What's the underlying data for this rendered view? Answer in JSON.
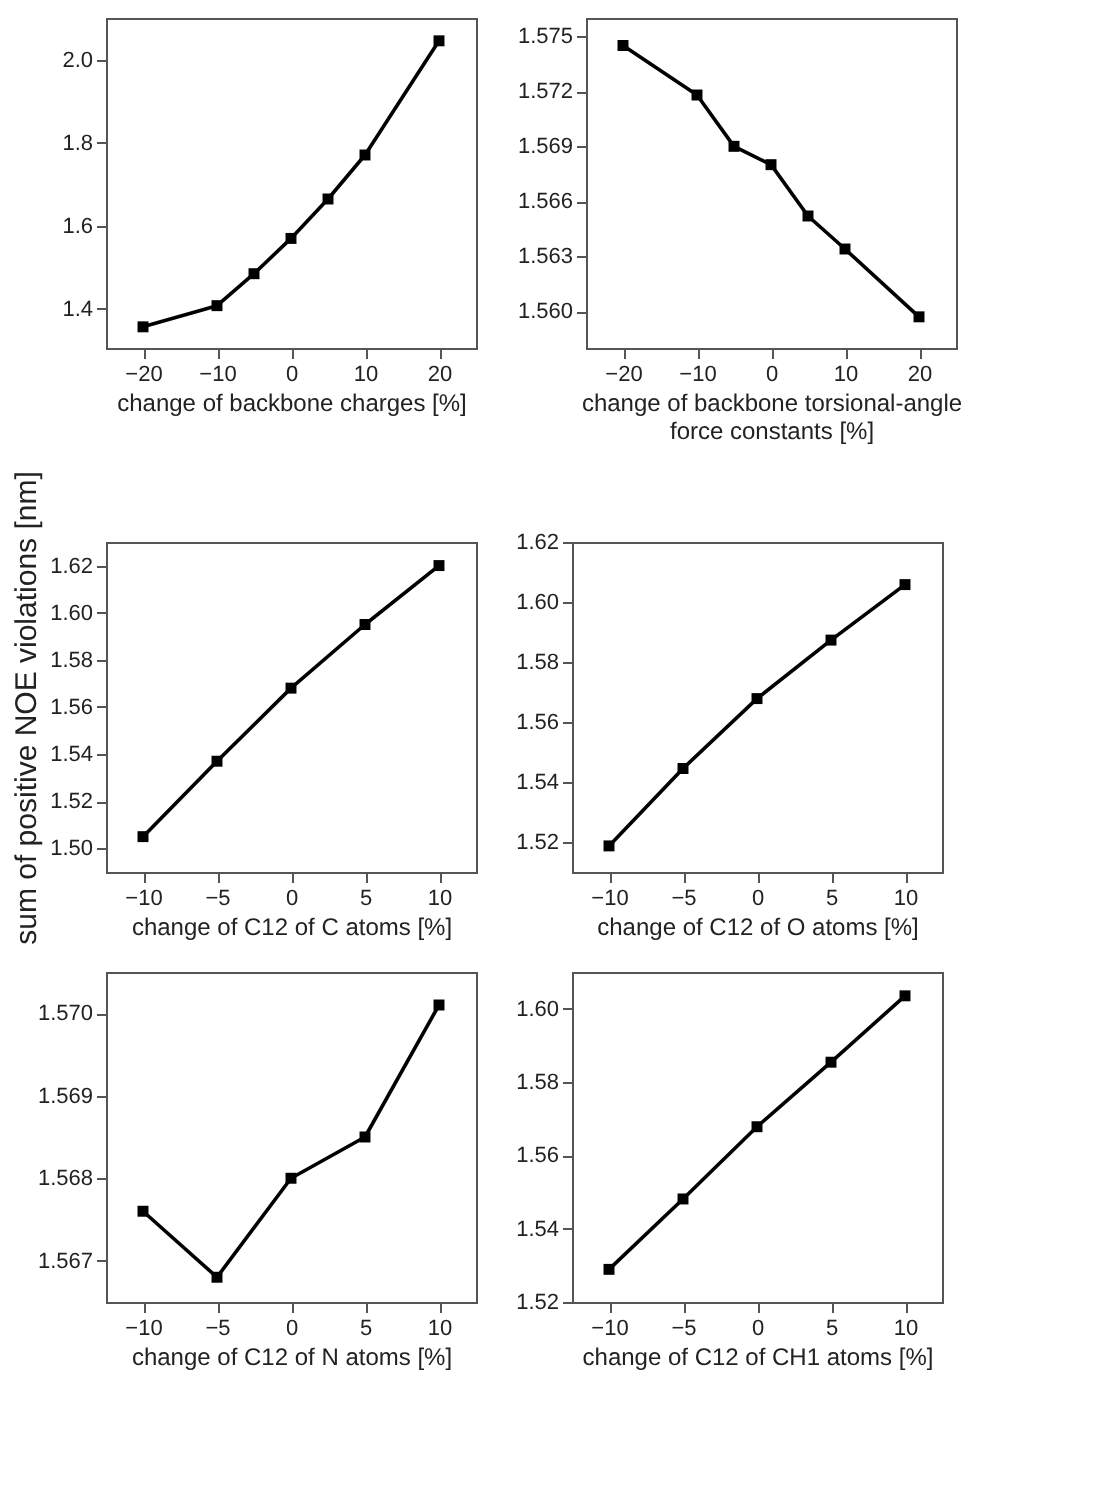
{
  "chart_data": [
    {
      "type": "line",
      "xlabel": "change of backbone charges [%]",
      "x": [
        -20,
        -10,
        -5,
        0,
        5,
        10,
        20
      ],
      "series": [
        {
          "color": "#000000",
          "values": [
            1.356,
            1.407,
            1.484,
            1.569,
            1.664,
            1.77,
            2.045
          ]
        }
      ],
      "xlim": [
        -25,
        25
      ],
      "xticks": [
        -20,
        -10,
        0,
        10,
        20
      ],
      "ylim": [
        1.305,
        2.1
      ],
      "yticks": [
        1.4,
        1.6,
        1.8,
        {
          "value": 2.0,
          "label": "2.0"
        }
      ],
      "marker": "square",
      "line_style": "solid",
      "grid": false
    },
    {
      "type": "line",
      "xlabel": "change of  backbone torsional-angle\nforce constants [%]",
      "x": [
        -20,
        -10,
        -5,
        0,
        5,
        10,
        20
      ],
      "series": [
        {
          "color": "#000000",
          "values": [
            1.5745,
            1.5718,
            1.569,
            1.568,
            1.5652,
            1.5634,
            1.5597
          ]
        }
      ],
      "xlim": [
        -25,
        25
      ],
      "xticks": [
        -20,
        -10,
        0,
        10,
        20
      ],
      "ylim": [
        1.558,
        1.576
      ],
      "yticks": [
        1.575,
        1.572,
        1.569,
        1.566,
        1.563,
        {
          "value": 1.56,
          "label": "1.560"
        }
      ],
      "marker": "square",
      "line_style": "solid",
      "grid": false
    },
    {
      "type": "line",
      "xlabel": "change of C12 of C atoms [%]",
      "ylabel": "sum of positive NOE violations [nm]",
      "x": [
        -10,
        -5,
        0,
        5,
        10
      ],
      "series": [
        {
          "color": "#000000",
          "values": [
            1.505,
            1.537,
            1.568,
            1.595,
            1.62
          ]
        }
      ],
      "xlim": [
        -12.5,
        12.5
      ],
      "xticks": [
        -10,
        -5,
        0,
        5,
        10
      ],
      "ylim": [
        1.49,
        1.63
      ],
      "yticks": [
        {
          "value": 1.5,
          "label": "1.50"
        },
        1.52,
        1.54,
        1.56,
        1.58,
        {
          "value": 1.6,
          "label": "1.60"
        },
        1.62
      ],
      "marker": "square",
      "line_style": "solid",
      "grid": false
    },
    {
      "type": "line",
      "xlabel": "change of C12 of O atoms [%]",
      "x": [
        -10,
        -5,
        0,
        5,
        10
      ],
      "series": [
        {
          "color": "#000000",
          "values": [
            1.5187,
            1.5445,
            1.5678,
            1.5873,
            1.6058
          ]
        }
      ],
      "xlim": [
        -12.5,
        12.5
      ],
      "xticks": [
        -10,
        -5,
        0,
        5,
        10
      ],
      "ylim": [
        1.51,
        1.62
      ],
      "yticks": [
        1.52,
        1.54,
        1.56,
        1.58,
        {
          "value": 1.6,
          "label": "1.60"
        },
        1.62
      ],
      "marker": "square",
      "line_style": "solid",
      "grid": false
    },
    {
      "type": "line",
      "xlabel": "change of C12 of N atoms [%]",
      "x": [
        -10,
        -5,
        0,
        5,
        10
      ],
      "series": [
        {
          "color": "#000000",
          "values": [
            1.5676,
            1.5668,
            1.568,
            1.5685,
            1.5701
          ]
        }
      ],
      "xlim": [
        -12.5,
        12.5
      ],
      "xticks": [
        -10,
        -5,
        0,
        5,
        10
      ],
      "ylim": [
        1.5665,
        1.5705
      ],
      "yticks": [
        1.567,
        {
          "value": 1.568,
          "label": "1.568"
        },
        1.569,
        {
          "value": 1.57,
          "label": "1.570"
        }
      ],
      "marker": "square",
      "line_style": "solid",
      "grid": false
    },
    {
      "type": "line",
      "xlabel": "change of C12 of CH1 atoms [%]",
      "x": [
        -10,
        -5,
        0,
        5,
        10
      ],
      "series": [
        {
          "color": "#000000",
          "values": [
            1.5289,
            1.5481,
            1.5678,
            1.5854,
            1.6035
          ]
        }
      ],
      "xlim": [
        -12.5,
        12.5
      ],
      "xticks": [
        -10,
        -5,
        0,
        5,
        10
      ],
      "ylim": [
        1.52,
        1.61
      ],
      "yticks": [
        1.52,
        1.54,
        1.56,
        1.58,
        {
          "value": 1.6,
          "label": "1.60"
        }
      ],
      "marker": "square",
      "line_style": "solid",
      "grid": false
    }
  ]
}
